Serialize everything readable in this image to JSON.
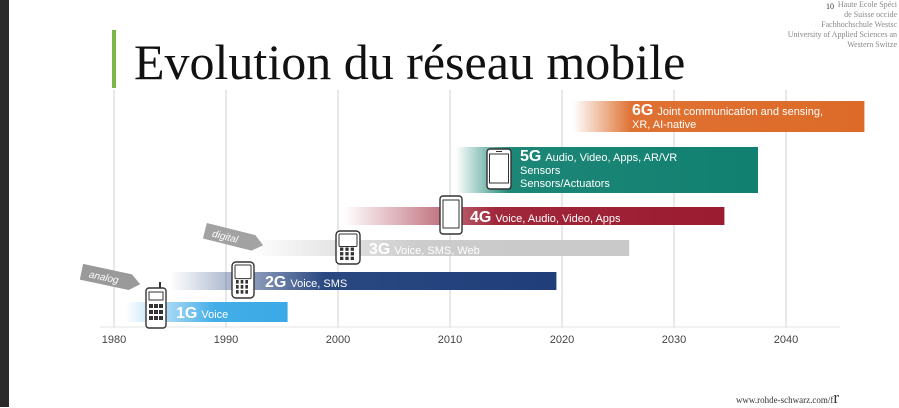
{
  "header": {
    "slide_number": "10",
    "university_lines": [
      "Haute Ecole Spéci",
      "de Suisse occide",
      "Fachhochschule Westsc",
      "University of Applied Sciences an",
      "Western Switze"
    ]
  },
  "title": "Evolution du réseau mobile",
  "footer": {
    "url": "www.rohde-schwarz.com/f",
    "suffix": "r"
  },
  "chart_data": {
    "type": "timeline",
    "x_ticks": [
      1980,
      1990,
      2000,
      2010,
      2020,
      2030,
      2040
    ],
    "xlim": [
      1980,
      2040
    ],
    "tech_labels": [
      {
        "text": "analog",
        "year": 1979
      },
      {
        "text": "digital",
        "year": 1990
      }
    ],
    "generations": [
      {
        "label": "1G",
        "services": [
          "Voice"
        ],
        "start": 1981,
        "end": 1995.5,
        "color": "#3aa9e6"
      },
      {
        "label": "2G",
        "services": [
          "Voice, SMS"
        ],
        "start": 1985,
        "end": 2019.5,
        "color": "#1f3e7a"
      },
      {
        "label": "3G",
        "services": [
          "Voice, SMS, Web"
        ],
        "start": 1992,
        "end": 2026,
        "color": "#c9c9c9"
      },
      {
        "label": "4G",
        "services": [
          "Voice, Audio, Video, Apps"
        ],
        "start": 2000.5,
        "end": 2034.5,
        "color": "#9b1b30"
      },
      {
        "label": "5G",
        "services": [
          "Audio, Video, Apps, AR/VR",
          "Sensors",
          "Sensors/Actuators"
        ],
        "start": 2010.5,
        "end": 2037.5,
        "color": "#118070"
      },
      {
        "label": "6G",
        "services": [
          "Joint communication and sensing,",
          "XR, AI-native"
        ],
        "start": 2021,
        "end": 2047,
        "color": "#dd6a28"
      }
    ]
  }
}
